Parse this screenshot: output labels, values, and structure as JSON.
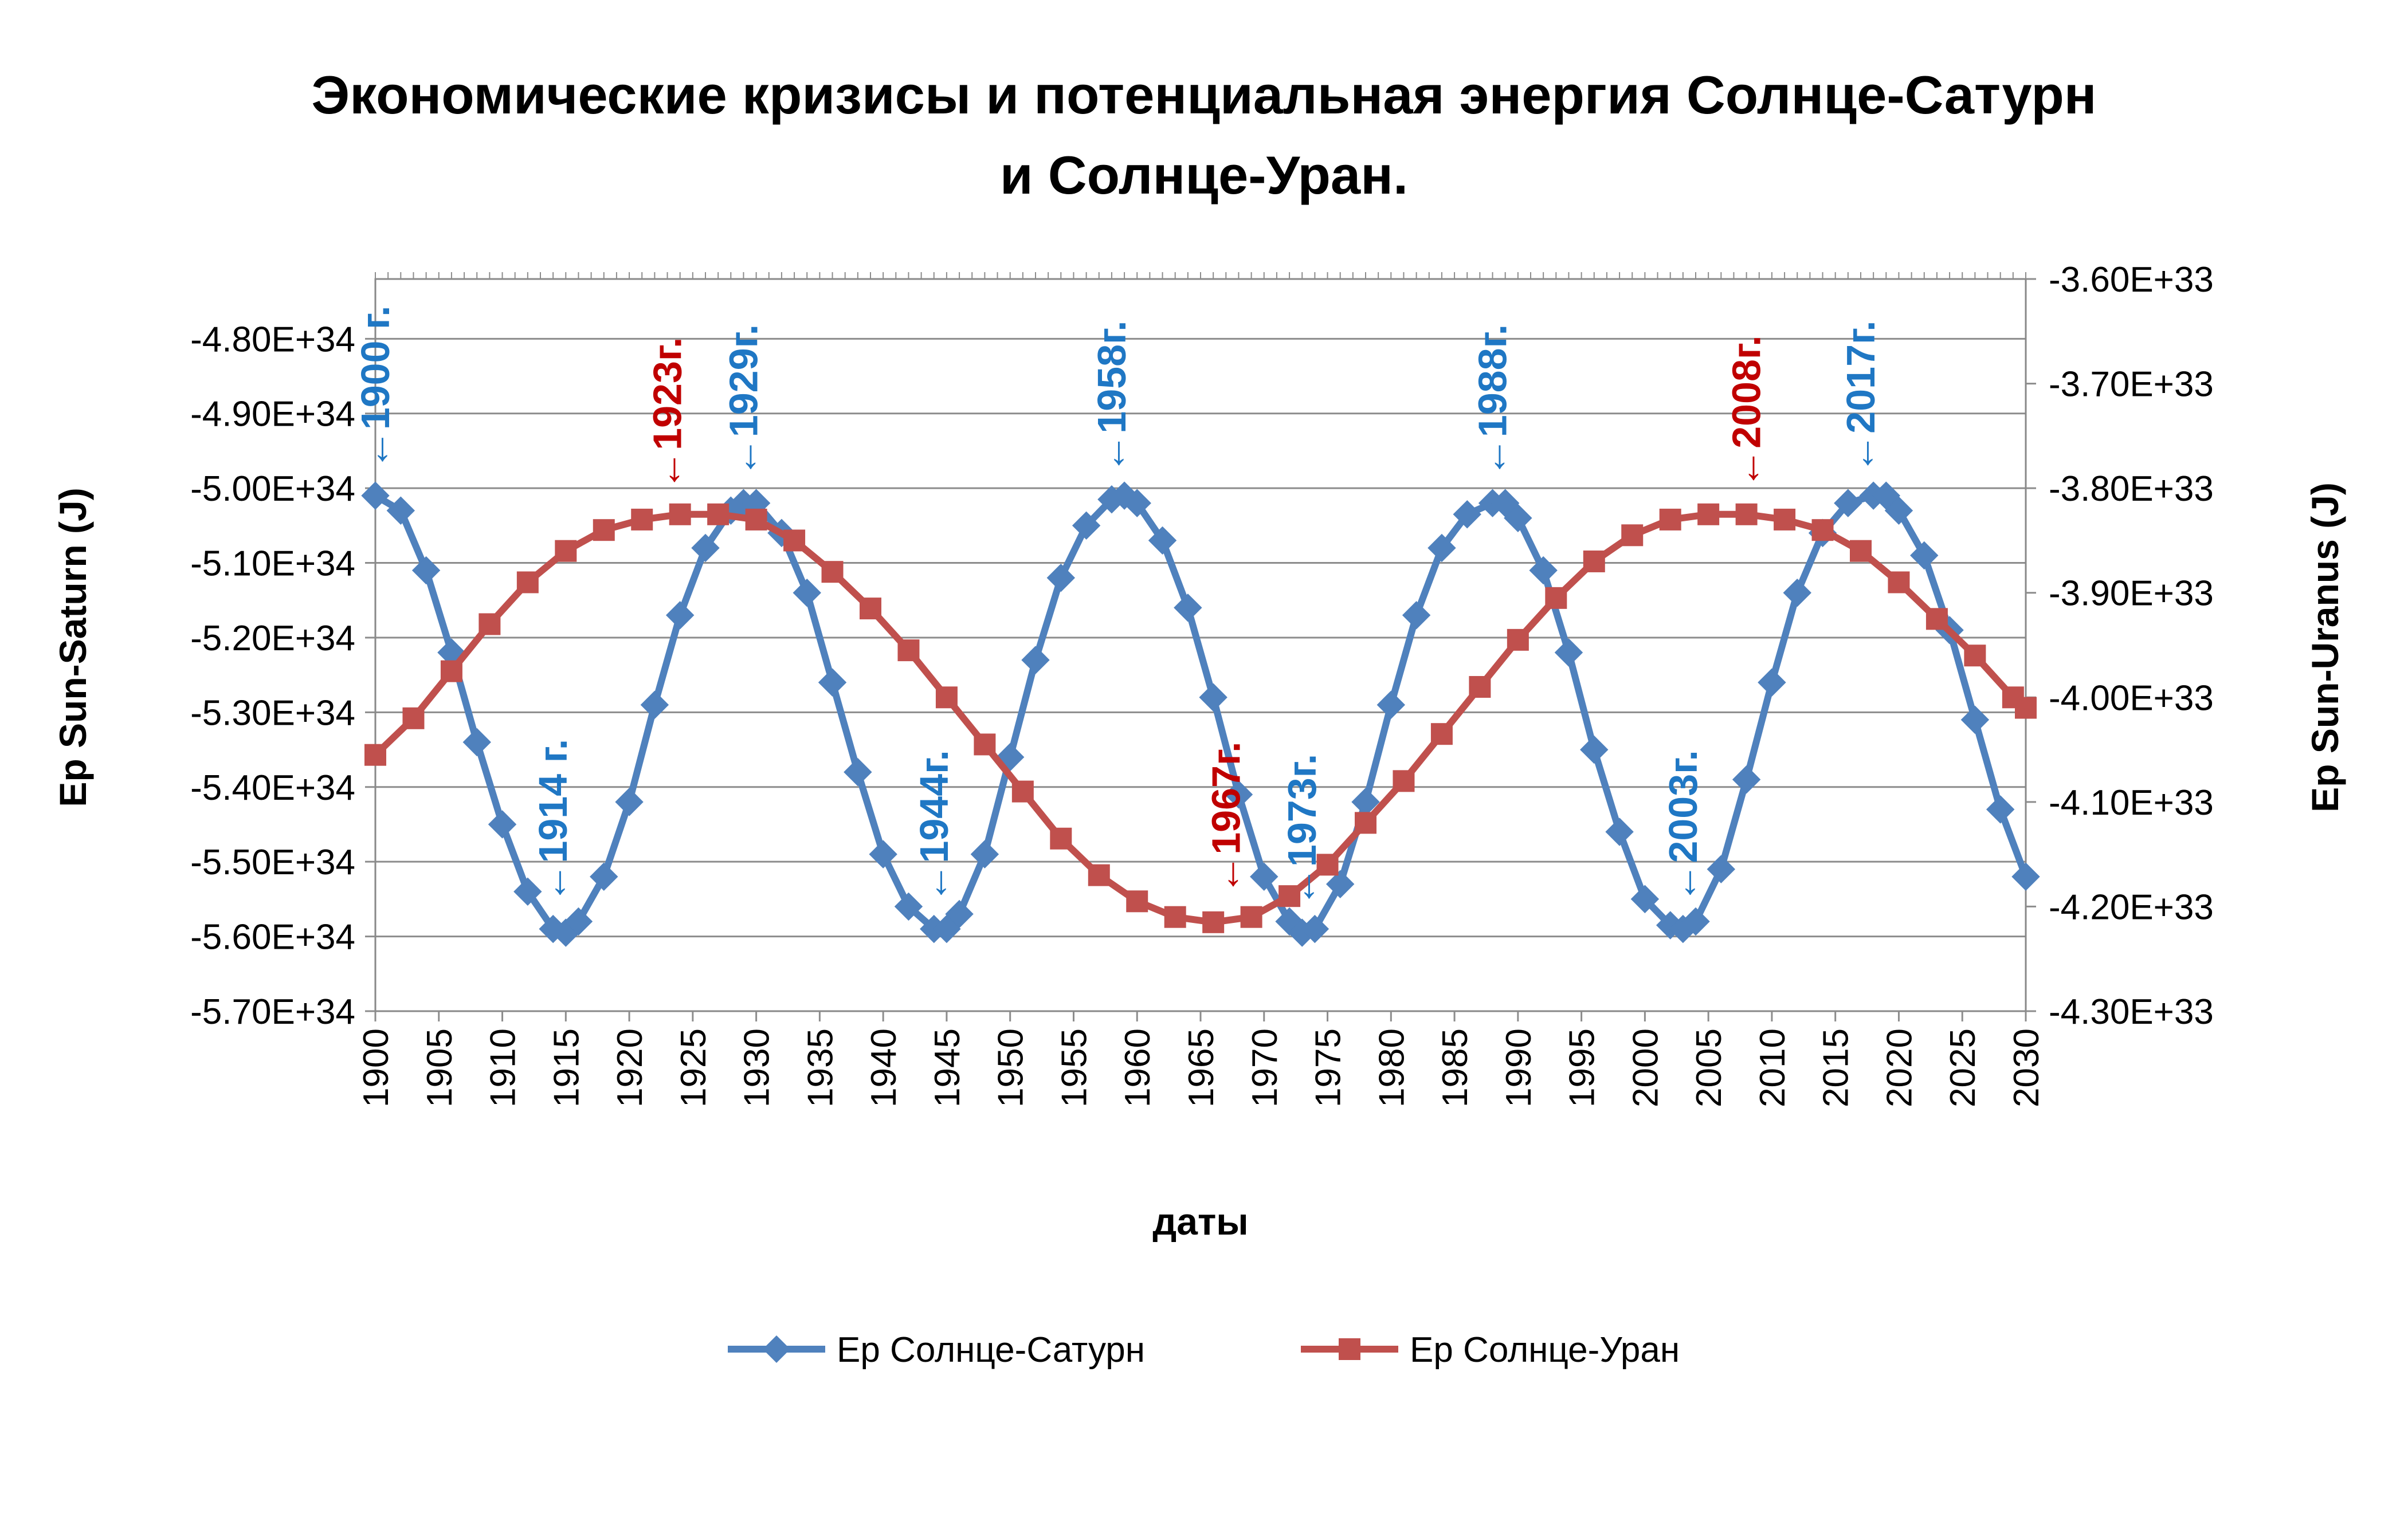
{
  "chart_data": {
    "type": "line",
    "title": "Экономические кризисы и потенциальная энергия Солнце-Сатурн",
    "subtitle": "и Солнце-Уран.",
    "xlabel": "даты",
    "ylabel": "Ep Sun-Saturn (J)",
    "y2label": "Ep Sun-Uranus (J)",
    "xlim": [
      1900,
      2030
    ],
    "ylim": [
      -5.7e+34,
      -4.72e+34
    ],
    "y2lim": [
      -4.3e+33,
      -3.6e+33
    ],
    "x_ticks": [
      "1900",
      "1905",
      "1910",
      "1915",
      "1920",
      "1925",
      "1930",
      "1935",
      "1940",
      "1945",
      "1950",
      "1955",
      "1960",
      "1965",
      "1970",
      "1975",
      "1980",
      "1985",
      "1990",
      "1995",
      "2000",
      "2005",
      "2010",
      "2015",
      "2020",
      "2025",
      "2030"
    ],
    "y_ticks": [
      "-4.80E+34",
      "-4.90E+34",
      "-5.00E+34",
      "-5.10E+34",
      "-5.20E+34",
      "-5.30E+34",
      "-5.40E+34",
      "-5.50E+34",
      "-5.60E+34",
      "-5.70E+34"
    ],
    "y_tick_values": [
      -4.8e+34,
      -4.9e+34,
      -5e+34,
      -5.1e+34,
      -5.2e+34,
      -5.3e+34,
      -5.4e+34,
      -5.5e+34,
      -5.6e+34,
      -5.7e+34
    ],
    "y2_ticks": [
      "-3.60E+33",
      "-3.70E+33",
      "-3.80E+33",
      "-3.90E+33",
      "-4.00E+33",
      "-4.10E+33",
      "-4.20E+33",
      "-4.30E+33"
    ],
    "y2_tick_values": [
      -3.6e+33,
      -3.7e+33,
      -3.8e+33,
      -3.9e+33,
      -4e+33,
      -4.1e+33,
      -4.2e+33,
      -4.3e+33
    ],
    "grid": true,
    "legend_position": "bottom",
    "series": [
      {
        "name": "Ep Солнце-Сатурн",
        "axis": "left",
        "color": "#4f81bd",
        "marker": "diamond",
        "x": [
          1900,
          1902,
          1904,
          1906,
          1908,
          1910,
          1912,
          1914,
          1915,
          1916,
          1918,
          1920,
          1922,
          1924,
          1926,
          1928,
          1929,
          1930,
          1932,
          1934,
          1936,
          1938,
          1940,
          1942,
          1944,
          1945,
          1946,
          1948,
          1950,
          1952,
          1954,
          1956,
          1958,
          1959,
          1960,
          1962,
          1964,
          1966,
          1968,
          1970,
          1972,
          1973,
          1974,
          1976,
          1978,
          1980,
          1982,
          1984,
          1986,
          1988,
          1989,
          1990,
          1992,
          1994,
          1996,
          1998,
          2000,
          2002,
          2003,
          2004,
          2006,
          2008,
          2010,
          2012,
          2014,
          2016,
          2018,
          2019,
          2020,
          2022,
          2024,
          2026,
          2028,
          2030
        ],
        "values": [
          -5.01e+34,
          -5.03e+34,
          -5.11e+34,
          -5.22e+34,
          -5.34e+34,
          -5.45e+34,
          -5.54e+34,
          -5.59e+34,
          -5.595e+34,
          -5.58e+34,
          -5.52e+34,
          -5.42e+34,
          -5.29e+34,
          -5.17e+34,
          -5.08e+34,
          -5.03e+34,
          -5.02e+34,
          -5.02e+34,
          -5.06e+34,
          -5.14e+34,
          -5.26e+34,
          -5.38e+34,
          -5.49e+34,
          -5.56e+34,
          -5.59e+34,
          -5.59e+34,
          -5.57e+34,
          -5.49e+34,
          -5.36e+34,
          -5.23e+34,
          -5.12e+34,
          -5.05e+34,
          -5.015e+34,
          -5.01e+34,
          -5.02e+34,
          -5.07e+34,
          -5.16e+34,
          -5.28e+34,
          -5.41e+34,
          -5.52e+34,
          -5.58e+34,
          -5.595e+34,
          -5.59e+34,
          -5.53e+34,
          -5.42e+34,
          -5.29e+34,
          -5.17e+34,
          -5.08e+34,
          -5.035e+34,
          -5.02e+34,
          -5.02e+34,
          -5.04e+34,
          -5.11e+34,
          -5.22e+34,
          -5.35e+34,
          -5.46e+34,
          -5.55e+34,
          -5.585e+34,
          -5.59e+34,
          -5.58e+34,
          -5.51e+34,
          -5.39e+34,
          -5.26e+34,
          -5.14e+34,
          -5.06e+34,
          -5.02e+34,
          -5.01e+34,
          -5.01e+34,
          -5.03e+34,
          -5.09e+34,
          -5.19e+34,
          -5.31e+34,
          -5.43e+34,
          -5.52e+34
        ]
      },
      {
        "name": "Ep Солнце-Уран",
        "axis": "right",
        "color": "#c0504d",
        "marker": "square",
        "x": [
          1900,
          1903,
          1906,
          1909,
          1912,
          1915,
          1918,
          1921,
          1924,
          1927,
          1930,
          1933,
          1936,
          1939,
          1942,
          1945,
          1948,
          1951,
          1954,
          1957,
          1960,
          1963,
          1966,
          1969,
          1972,
          1975,
          1978,
          1981,
          1984,
          1987,
          1990,
          1993,
          1996,
          1999,
          2002,
          2005,
          2008,
          2011,
          2014,
          2017,
          2020,
          2023,
          2026,
          2029,
          2030
        ],
        "values": [
          -4.055e+33,
          -4.02e+33,
          -3.975e+33,
          -3.93e+33,
          -3.89e+33,
          -3.86e+33,
          -3.84e+33,
          -3.83e+33,
          -3.825e+33,
          -3.825e+33,
          -3.83e+33,
          -3.85e+33,
          -3.88e+33,
          -3.915e+33,
          -3.955e+33,
          -4e+33,
          -4.045e+33,
          -4.09e+33,
          -4.135e+33,
          -4.17e+33,
          -4.195e+33,
          -4.21e+33,
          -4.215e+33,
          -4.21e+33,
          -4.19e+33,
          -4.16e+33,
          -4.12e+33,
          -4.08e+33,
          -4.035e+33,
          -3.99e+33,
          -3.945e+33,
          -3.905e+33,
          -3.87e+33,
          -3.845e+33,
          -3.83e+33,
          -3.825e+33,
          -3.825e+33,
          -3.83e+33,
          -3.84e+33,
          -3.86e+33,
          -3.89e+33,
          -3.925e+33,
          -3.96e+33,
          -4e+33,
          -4.01e+33
        ]
      }
    ],
    "annotations": [
      {
        "text": "←1900 г.",
        "year": 1900,
        "series": 0,
        "color": "#1f77c4"
      },
      {
        "text": "←1914 г.",
        "year": 1914,
        "series": 0,
        "color": "#1f77c4"
      },
      {
        "text": "←1923г.",
        "year": 1923,
        "series": 1,
        "color": "#c00000"
      },
      {
        "text": "←1929г.",
        "year": 1929,
        "series": 0,
        "color": "#1f77c4"
      },
      {
        "text": "←1944г.",
        "year": 1944,
        "series": 0,
        "color": "#1f77c4"
      },
      {
        "text": "←1958г.",
        "year": 1958,
        "series": 0,
        "color": "#1f77c4"
      },
      {
        "text": "←1967г.",
        "year": 1967,
        "series": 1,
        "color": "#c00000"
      },
      {
        "text": "←1973г.",
        "year": 1973,
        "series": 0,
        "color": "#1f77c4"
      },
      {
        "text": "←1988г.",
        "year": 1988,
        "series": 0,
        "color": "#1f77c4"
      },
      {
        "text": "←2003г.",
        "year": 2003,
        "series": 0,
        "color": "#1f77c4"
      },
      {
        "text": "←2008г.",
        "year": 2008,
        "series": 1,
        "color": "#c00000"
      },
      {
        "text": "←2017г.",
        "year": 2017,
        "series": 0,
        "color": "#1f77c4"
      }
    ]
  }
}
